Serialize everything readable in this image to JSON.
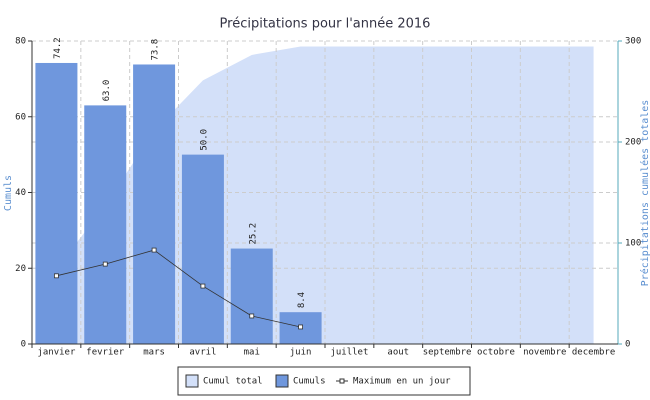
{
  "chart_data": {
    "type": "bar",
    "title": "Précipitations pour l'année 2016",
    "categories": [
      "janvier",
      "fevrier",
      "mars",
      "avril",
      "mai",
      "juin",
      "juillet",
      "aout",
      "septembre",
      "octobre",
      "novembre",
      "decembre"
    ],
    "ylabel": "Cumuls",
    "y2label": "Précipitations cumulées totales",
    "ylim": [
      0,
      80
    ],
    "yticks": [
      0,
      20,
      40,
      60,
      80
    ],
    "y2lim": [
      0,
      300
    ],
    "y2ticks": [
      0,
      100,
      200,
      300
    ],
    "grid": true,
    "legend": "bottom",
    "series": [
      {
        "name": "Cumul total",
        "type": "area",
        "axis": "y2",
        "color": "#d3e0f9",
        "values": [
          74.2,
          137.2,
          211.0,
          261.0,
          286.2,
          294.6,
          294.6,
          294.6,
          294.6,
          294.6,
          294.6,
          294.6
        ]
      },
      {
        "name": "Cumuls",
        "type": "bar",
        "color": "#6f97dd",
        "values": [
          74.2,
          63.0,
          73.8,
          50.0,
          25.2,
          8.4,
          null,
          null,
          null,
          null,
          null,
          null
        ],
        "value_labels": [
          "74.2",
          "63.0",
          "73.8",
          "50.0",
          "25.2",
          "8.4",
          null,
          null,
          null,
          null,
          null,
          null
        ]
      },
      {
        "name": "Maximum en un jour",
        "type": "line",
        "color": "#333333",
        "values": [
          18.0,
          21.1,
          24.8,
          15.3,
          7.4,
          4.5,
          null,
          null,
          null,
          null,
          null,
          null
        ]
      }
    ]
  }
}
